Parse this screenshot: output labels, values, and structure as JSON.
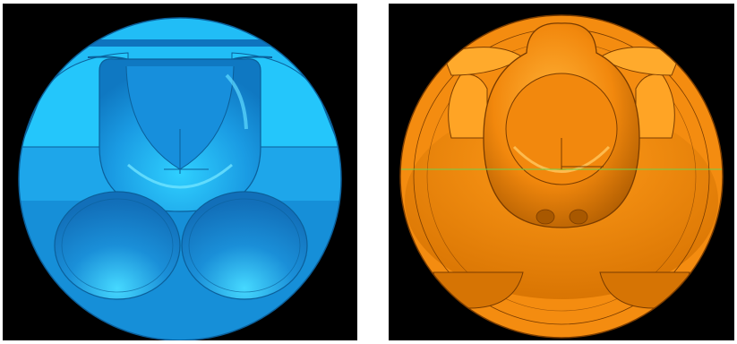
{
  "images": [
    {
      "id": "left",
      "subject": "blue-piston-crown-render",
      "colors": {
        "background": "#000000",
        "body": "#1ea9ea",
        "light": "#21c1fb",
        "dark": "#1486d1",
        "edge": "#0b5f9a"
      }
    },
    {
      "id": "right",
      "subject": "orange-piston-crown-render",
      "colors": {
        "background": "#000000",
        "body": "#f2880d",
        "light": "#ffae2e",
        "dark": "#c96d05",
        "edge": "#7a3c00",
        "guide_line": "#6fd24a"
      }
    }
  ]
}
